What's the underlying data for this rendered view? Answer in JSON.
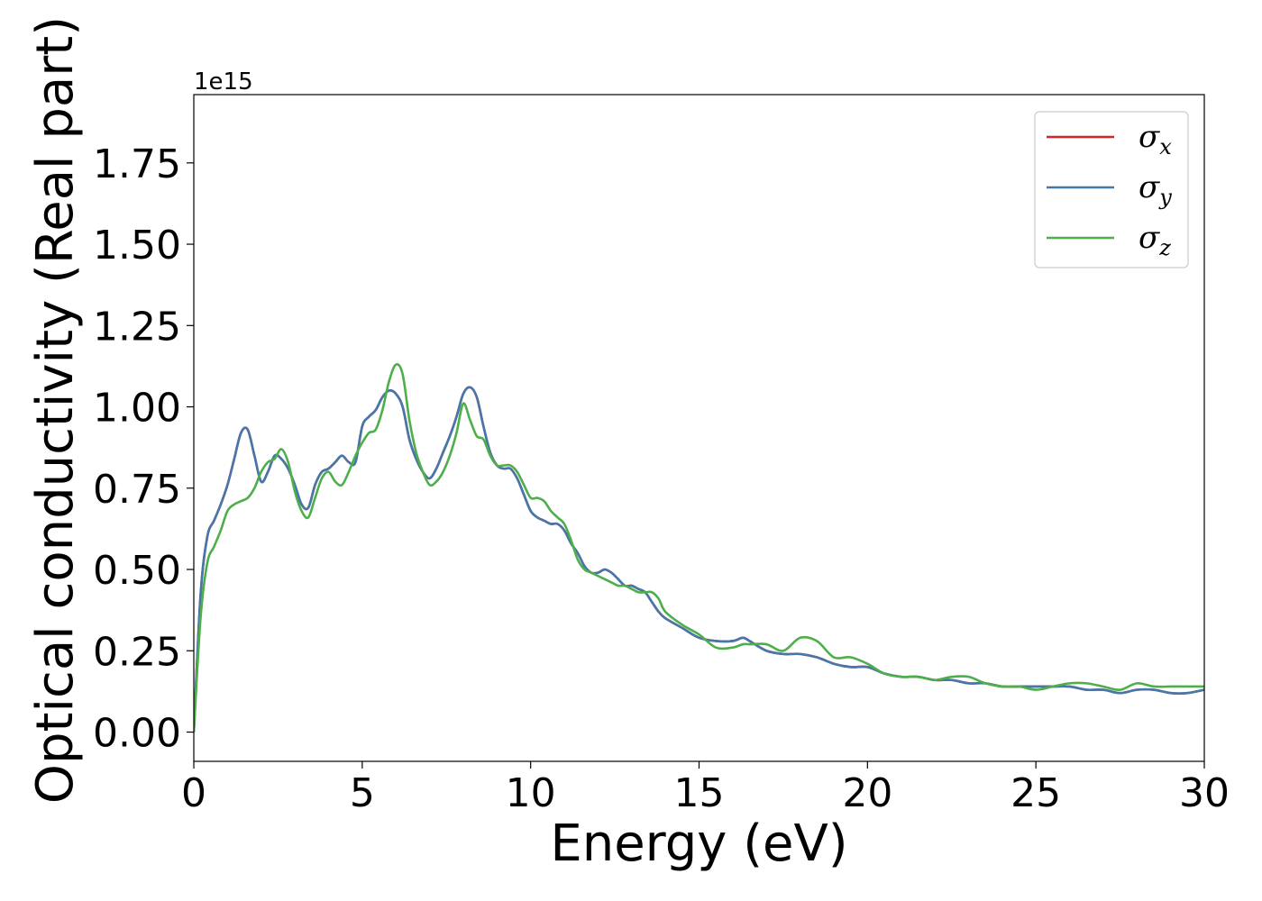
{
  "chart_data": {
    "type": "line",
    "title": "",
    "xlabel": "Energy (eV)",
    "ylabel": "Optical conductivity (Real part)",
    "y_offset_label": "1e15",
    "xlim": [
      0,
      30
    ],
    "ylim": [
      -0.09,
      1.96
    ],
    "xticks": [
      0,
      5,
      10,
      15,
      20,
      25,
      30
    ],
    "xtick_labels": [
      "0",
      "5",
      "10",
      "15",
      "20",
      "25",
      "30"
    ],
    "yticks": [
      0.0,
      0.25,
      0.5,
      0.75,
      1.0,
      1.25,
      1.5,
      1.75
    ],
    "ytick_labels": [
      "0.00",
      "0.25",
      "0.50",
      "0.75",
      "1.00",
      "1.25",
      "1.50",
      "1.75"
    ],
    "grid": false,
    "legend_position": "top-right",
    "series": [
      {
        "name": "σx",
        "legend_base": "σ",
        "legend_sub": "x",
        "color": "#d62728",
        "x": [
          0,
          0.2,
          0.4,
          0.6,
          0.8,
          1.0,
          1.2,
          1.4,
          1.6,
          1.8,
          2.0,
          2.2,
          2.4,
          2.6,
          2.8,
          3.0,
          3.2,
          3.4,
          3.6,
          3.8,
          4.0,
          4.2,
          4.4,
          4.6,
          4.8,
          5.0,
          5.2,
          5.4,
          5.6,
          5.8,
          6.0,
          6.2,
          6.4,
          6.6,
          6.8,
          7.0,
          7.2,
          7.4,
          7.6,
          7.8,
          8.0,
          8.2,
          8.4,
          8.6,
          8.8,
          9.0,
          9.2,
          9.4,
          9.6,
          9.8,
          10.0,
          10.2,
          10.4,
          10.6,
          10.8,
          11.0,
          11.2,
          11.4,
          11.6,
          11.8,
          12.0,
          12.2,
          12.4,
          12.6,
          12.8,
          13.0,
          13.2,
          13.4,
          13.6,
          13.8,
          14.0,
          14.5,
          15.0,
          15.5,
          16.0,
          16.3,
          16.5,
          17.0,
          17.5,
          18.0,
          18.5,
          19.0,
          19.5,
          20.0,
          20.5,
          21.0,
          21.5,
          22.0,
          22.5,
          23.0,
          23.5,
          24.0,
          24.5,
          25.0,
          25.5,
          26.0,
          26.5,
          27.0,
          27.5,
          28.0,
          28.5,
          29.0,
          29.5,
          30.0
        ],
        "y": [
          0.0,
          0.42,
          0.6,
          0.65,
          0.7,
          0.76,
          0.84,
          0.92,
          0.93,
          0.85,
          0.77,
          0.8,
          0.85,
          0.84,
          0.81,
          0.76,
          0.7,
          0.69,
          0.76,
          0.8,
          0.81,
          0.83,
          0.85,
          0.83,
          0.83,
          0.94,
          0.97,
          0.99,
          1.03,
          1.05,
          1.04,
          1.0,
          0.9,
          0.84,
          0.8,
          0.78,
          0.81,
          0.86,
          0.91,
          0.97,
          1.04,
          1.06,
          1.03,
          0.94,
          0.86,
          0.82,
          0.81,
          0.81,
          0.78,
          0.73,
          0.68,
          0.66,
          0.65,
          0.64,
          0.64,
          0.62,
          0.58,
          0.55,
          0.51,
          0.49,
          0.49,
          0.5,
          0.49,
          0.47,
          0.45,
          0.45,
          0.44,
          0.43,
          0.4,
          0.37,
          0.35,
          0.32,
          0.29,
          0.28,
          0.28,
          0.29,
          0.28,
          0.25,
          0.24,
          0.24,
          0.23,
          0.21,
          0.2,
          0.2,
          0.18,
          0.17,
          0.17,
          0.16,
          0.16,
          0.15,
          0.15,
          0.14,
          0.14,
          0.14,
          0.14,
          0.14,
          0.13,
          0.13,
          0.12,
          0.13,
          0.13,
          0.12,
          0.12,
          0.13
        ]
      },
      {
        "name": "σy",
        "legend_base": "σ",
        "legend_sub": "y",
        "color": "#4477aa",
        "x": [
          0,
          0.2,
          0.4,
          0.6,
          0.8,
          1.0,
          1.2,
          1.4,
          1.6,
          1.8,
          2.0,
          2.2,
          2.4,
          2.6,
          2.8,
          3.0,
          3.2,
          3.4,
          3.6,
          3.8,
          4.0,
          4.2,
          4.4,
          4.6,
          4.8,
          5.0,
          5.2,
          5.4,
          5.6,
          5.8,
          6.0,
          6.2,
          6.4,
          6.6,
          6.8,
          7.0,
          7.2,
          7.4,
          7.6,
          7.8,
          8.0,
          8.2,
          8.4,
          8.6,
          8.8,
          9.0,
          9.2,
          9.4,
          9.6,
          9.8,
          10.0,
          10.2,
          10.4,
          10.6,
          10.8,
          11.0,
          11.2,
          11.4,
          11.6,
          11.8,
          12.0,
          12.2,
          12.4,
          12.6,
          12.8,
          13.0,
          13.2,
          13.4,
          13.6,
          13.8,
          14.0,
          14.5,
          15.0,
          15.5,
          16.0,
          16.3,
          16.5,
          17.0,
          17.5,
          18.0,
          18.5,
          19.0,
          19.5,
          20.0,
          20.5,
          21.0,
          21.5,
          22.0,
          22.5,
          23.0,
          23.5,
          24.0,
          24.5,
          25.0,
          25.5,
          26.0,
          26.5,
          27.0,
          27.5,
          28.0,
          28.5,
          29.0,
          29.5,
          30.0
        ],
        "y": [
          0.0,
          0.42,
          0.6,
          0.65,
          0.7,
          0.76,
          0.84,
          0.92,
          0.93,
          0.85,
          0.77,
          0.8,
          0.85,
          0.84,
          0.81,
          0.76,
          0.7,
          0.69,
          0.76,
          0.8,
          0.81,
          0.83,
          0.85,
          0.83,
          0.83,
          0.94,
          0.97,
          0.99,
          1.03,
          1.05,
          1.04,
          1.0,
          0.9,
          0.84,
          0.8,
          0.78,
          0.81,
          0.86,
          0.91,
          0.97,
          1.04,
          1.06,
          1.03,
          0.94,
          0.86,
          0.82,
          0.81,
          0.81,
          0.78,
          0.73,
          0.68,
          0.66,
          0.65,
          0.64,
          0.64,
          0.62,
          0.58,
          0.55,
          0.51,
          0.49,
          0.49,
          0.5,
          0.49,
          0.47,
          0.45,
          0.45,
          0.44,
          0.43,
          0.4,
          0.37,
          0.35,
          0.32,
          0.29,
          0.28,
          0.28,
          0.29,
          0.28,
          0.25,
          0.24,
          0.24,
          0.23,
          0.21,
          0.2,
          0.2,
          0.18,
          0.17,
          0.17,
          0.16,
          0.16,
          0.15,
          0.15,
          0.14,
          0.14,
          0.14,
          0.14,
          0.14,
          0.13,
          0.13,
          0.12,
          0.13,
          0.13,
          0.12,
          0.12,
          0.13
        ]
      },
      {
        "name": "σz",
        "legend_base": "σ",
        "legend_sub": "z",
        "color": "#4daf4a",
        "x": [
          0,
          0.2,
          0.4,
          0.6,
          0.8,
          1.0,
          1.2,
          1.4,
          1.6,
          1.8,
          2.0,
          2.2,
          2.4,
          2.6,
          2.8,
          3.0,
          3.2,
          3.4,
          3.6,
          3.8,
          4.0,
          4.2,
          4.4,
          4.6,
          4.8,
          5.0,
          5.2,
          5.4,
          5.6,
          5.8,
          6.0,
          6.2,
          6.4,
          6.6,
          6.8,
          7.0,
          7.2,
          7.4,
          7.6,
          7.8,
          8.0,
          8.2,
          8.4,
          8.6,
          8.8,
          9.0,
          9.2,
          9.4,
          9.6,
          9.8,
          10.0,
          10.2,
          10.4,
          10.6,
          10.8,
          11.0,
          11.2,
          11.4,
          11.6,
          11.8,
          12.0,
          12.2,
          12.4,
          12.6,
          12.8,
          13.0,
          13.2,
          13.4,
          13.6,
          13.8,
          14.0,
          14.5,
          15.0,
          15.5,
          16.0,
          16.3,
          16.5,
          17.0,
          17.5,
          18.0,
          18.5,
          19.0,
          19.5,
          20.0,
          20.5,
          21.0,
          21.5,
          22.0,
          22.5,
          23.0,
          23.5,
          24.0,
          24.5,
          25.0,
          25.5,
          26.0,
          26.5,
          27.0,
          27.5,
          28.0,
          28.5,
          29.0,
          29.5,
          30.0
        ],
        "y": [
          0.0,
          0.35,
          0.52,
          0.57,
          0.62,
          0.68,
          0.7,
          0.71,
          0.72,
          0.75,
          0.8,
          0.83,
          0.84,
          0.87,
          0.83,
          0.74,
          0.68,
          0.66,
          0.72,
          0.78,
          0.8,
          0.77,
          0.76,
          0.8,
          0.85,
          0.89,
          0.92,
          0.93,
          0.99,
          1.08,
          1.13,
          1.1,
          0.96,
          0.86,
          0.8,
          0.76,
          0.77,
          0.8,
          0.85,
          0.92,
          1.01,
          0.96,
          0.91,
          0.9,
          0.85,
          0.82,
          0.82,
          0.82,
          0.8,
          0.76,
          0.72,
          0.72,
          0.71,
          0.68,
          0.66,
          0.64,
          0.59,
          0.53,
          0.5,
          0.49,
          0.48,
          0.47,
          0.46,
          0.45,
          0.45,
          0.44,
          0.43,
          0.43,
          0.43,
          0.41,
          0.37,
          0.33,
          0.3,
          0.26,
          0.26,
          0.27,
          0.27,
          0.27,
          0.25,
          0.29,
          0.28,
          0.23,
          0.23,
          0.21,
          0.18,
          0.17,
          0.17,
          0.16,
          0.17,
          0.17,
          0.15,
          0.14,
          0.14,
          0.13,
          0.14,
          0.15,
          0.15,
          0.14,
          0.13,
          0.15,
          0.14,
          0.14,
          0.14,
          0.14
        ]
      }
    ]
  }
}
